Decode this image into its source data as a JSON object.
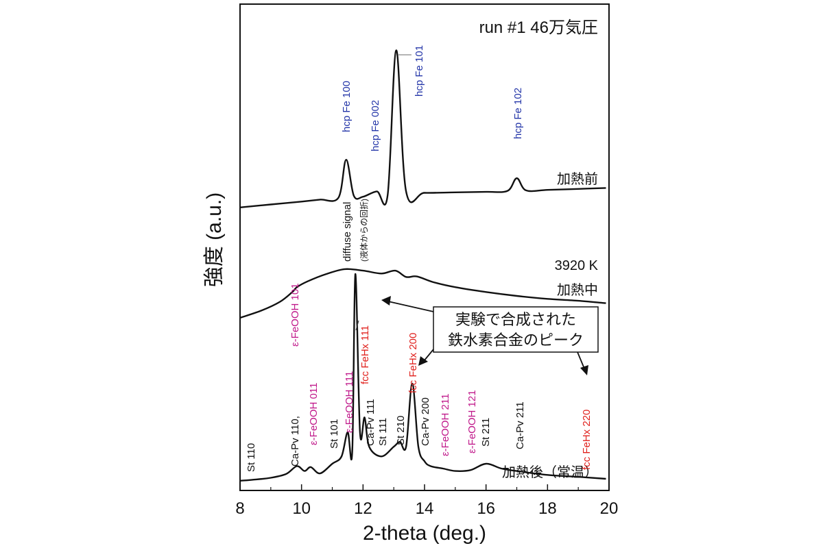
{
  "chart_data": {
    "type": "line",
    "title": "run #1 46万気圧",
    "xlabel": "2-theta (deg.)",
    "ylabel": "強度 (a.u.)",
    "xlim": [
      8,
      20
    ],
    "ylim": [
      0,
      1
    ],
    "xticks": [
      "8",
      "10",
      "12",
      "14",
      "16",
      "18",
      "20"
    ],
    "grid": false,
    "series": [
      {
        "name": "加熱前",
        "x": [
          8,
          9,
          10,
          10.6,
          11.2,
          11.45,
          11.7,
          12.0,
          12.45,
          12.8,
          13.08,
          13.4,
          14,
          15,
          16,
          16.7,
          17.0,
          17.3,
          18,
          19,
          19.9
        ],
        "y": [
          0.582,
          0.588,
          0.594,
          0.598,
          0.602,
          0.68,
          0.606,
          0.604,
          0.615,
          0.607,
          0.905,
          0.615,
          0.612,
          0.613,
          0.614,
          0.616,
          0.642,
          0.617,
          0.618,
          0.62,
          0.622
        ]
      },
      {
        "name": "加熱中",
        "label": "3920 K",
        "x": [
          8,
          8.7,
          9.3,
          9.7,
          9.85,
          10.2,
          10.8,
          11.4,
          12.0,
          12.6,
          13.05,
          13.4,
          13.75,
          14.3,
          15,
          16,
          17,
          18,
          19,
          19.9
        ],
        "y": [
          0.355,
          0.37,
          0.388,
          0.408,
          0.418,
          0.43,
          0.445,
          0.455,
          0.452,
          0.446,
          0.452,
          0.439,
          0.44,
          0.428,
          0.418,
          0.408,
          0.4,
          0.394,
          0.39,
          0.385
        ]
      },
      {
        "name": "加熱後（常温）",
        "x": [
          8,
          8.4,
          9,
          9.5,
          9.85,
          10.1,
          10.3,
          10.6,
          11.0,
          11.3,
          11.5,
          11.65,
          11.75,
          11.9,
          12.05,
          12.2,
          12.6,
          13.0,
          13.2,
          13.4,
          13.6,
          13.8,
          14.0,
          14.2,
          14.6,
          15.0,
          15.5,
          16.0,
          16.5,
          17.0,
          18.0,
          19.0,
          19.9
        ],
        "y": [
          0.02,
          0.022,
          0.026,
          0.034,
          0.05,
          0.04,
          0.048,
          0.035,
          0.055,
          0.07,
          0.12,
          0.08,
          0.445,
          0.12,
          0.15,
          0.09,
          0.07,
          0.09,
          0.1,
          0.09,
          0.22,
          0.09,
          0.06,
          0.05,
          0.045,
          0.04,
          0.042,
          0.055,
          0.045,
          0.04,
          0.032,
          0.028,
          0.024
        ]
      }
    ],
    "curve_labels": [
      "加熱前",
      "3920 K",
      "加熱中",
      "加熱後（常温）"
    ],
    "annotations": [
      {
        "text": "hcp Fe 100",
        "color": "#2335a8",
        "x": 11.45
      },
      {
        "text": "hcp Fe 002",
        "color": "#2335a8",
        "x": 12.45
      },
      {
        "text": "hcp Fe 101",
        "color": "#2335a8",
        "x": 13.08
      },
      {
        "text": "hcp Fe 102",
        "color": "#2335a8",
        "x": 17.0
      },
      {
        "text": "diffuse signal",
        "color": "#111111",
        "x": 11.6
      },
      {
        "text": "(液体からの回折)",
        "color": "#111111",
        "x": 11.6
      },
      {
        "text": "St 110",
        "color": "#111111",
        "x": 8.4
      },
      {
        "text": "Ca-Pv 110,",
        "color": "#111111",
        "x": 9.85
      },
      {
        "text": "ε-FeOOH 101",
        "color": "#c0188a",
        "x": 9.85
      },
      {
        "text": "ε-FeOOH 011",
        "color": "#c0188a",
        "x": 10.3
      },
      {
        "text": "St 101",
        "color": "#111111",
        "x": 11.0
      },
      {
        "text": "ε-FeOOH 111",
        "color": "#c0188a",
        "x": 11.55
      },
      {
        "text": "fcc FeHx 111",
        "color": "#e0201c",
        "x": 11.78
      },
      {
        "text": "Ca-Pv 111",
        "color": "#111111",
        "x": 12.08
      },
      {
        "text": "St 111",
        "color": "#111111",
        "x": 12.3
      },
      {
        "text": "St 210",
        "color": "#111111",
        "x": 13.2
      },
      {
        "text": "fcc FeHx 200",
        "color": "#e0201c",
        "x": 13.6
      },
      {
        "text": "Ca-Pv 200",
        "color": "#111111",
        "x": 14.0
      },
      {
        "text": "ε-FeOOH 211",
        "color": "#c0188a",
        "x": 14.5
      },
      {
        "text": "ε-FeOOH 121",
        "color": "#c0188a",
        "x": 15.55
      },
      {
        "text": "St 211",
        "color": "#111111",
        "x": 16.0
      },
      {
        "text": "Ca-Pv 211",
        "color": "#111111",
        "x": 17.0
      },
      {
        "text": "fcc FeHx 220",
        "color": "#e0201c",
        "x": 19.3
      }
    ],
    "callout": [
      "実験で合成された",
      "鉄水素合金のピーク"
    ]
  }
}
